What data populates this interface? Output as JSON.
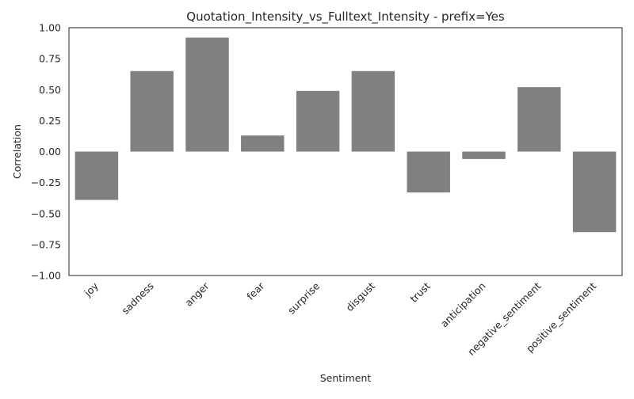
{
  "chart_data": {
    "type": "bar",
    "title": "Quotation_Intensity_vs_Fulltext_Intensity - prefix=Yes",
    "xlabel": "Sentiment",
    "ylabel": "Correlation",
    "ylim": [
      -1.0,
      1.0
    ],
    "yticks": [
      "−1.00",
      "−0.75",
      "−0.50",
      "−0.25",
      "0.00",
      "0.25",
      "0.50",
      "0.75",
      "1.00"
    ],
    "ytick_values": [
      -1.0,
      -0.75,
      -0.5,
      -0.25,
      0.0,
      0.25,
      0.5,
      0.75,
      1.0
    ],
    "categories": [
      "joy",
      "sadness",
      "anger",
      "fear",
      "surprise",
      "disgust",
      "trust",
      "anticipation",
      "negative_sentiment",
      "positive_sentiment"
    ],
    "values": [
      -0.39,
      0.65,
      0.92,
      0.13,
      0.49,
      0.65,
      -0.33,
      -0.06,
      0.52,
      -0.65
    ],
    "bar_color": "#808080",
    "grid": false,
    "legend": "none"
  }
}
